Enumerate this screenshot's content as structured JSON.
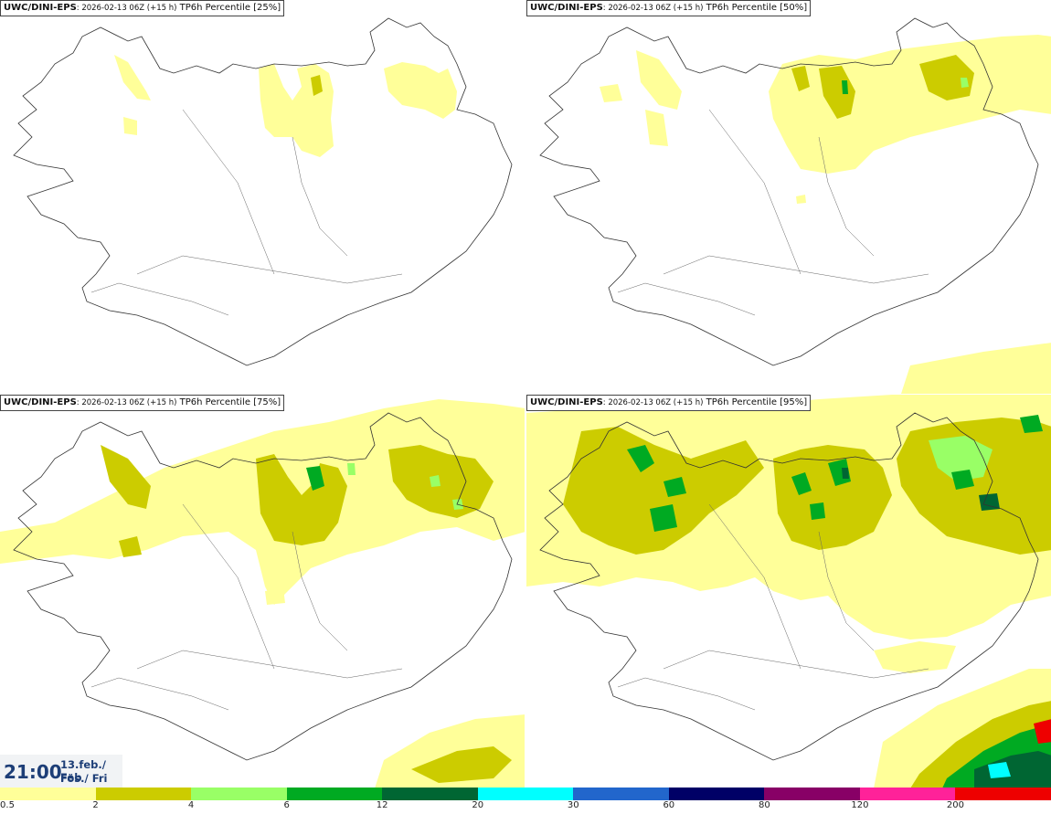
{
  "panels": [
    {
      "model": "UWC/DINI-EPS",
      "run": ": 2026-02-13 06Z (+15 h)",
      "field": "TP6h Percentile [25%]"
    },
    {
      "model": "UWC/DINI-EPS",
      "run": ": 2026-02-13 06Z (+15 h)",
      "field": "TP6h Percentile [50%]"
    },
    {
      "model": "UWC/DINI-EPS",
      "run": ": 2026-02-13 06Z (+15 h)",
      "field": "TP6h Percentile [75%]"
    },
    {
      "model": "UWC/DINI-EPS",
      "run": ": 2026-02-13 06Z (+15 h)",
      "field": "TP6h Percentile [95%]"
    }
  ],
  "valid_time": {
    "time": "21:00",
    "date_line1": "13.feb./ Feb",
    "date_line2": "Fös./ Fri"
  },
  "colorbar": {
    "labels": [
      "0.5",
      "2",
      "4",
      "6",
      "12",
      "20",
      "30",
      "60",
      "80",
      "120",
      "200"
    ],
    "colors": [
      "#ffff99",
      "#cccc00",
      "#99ff66",
      "#00aa22",
      "#006633",
      "#00ffff",
      "#2266cc",
      "#000066",
      "#880066",
      "#ff2299",
      "#ee0000"
    ]
  }
}
